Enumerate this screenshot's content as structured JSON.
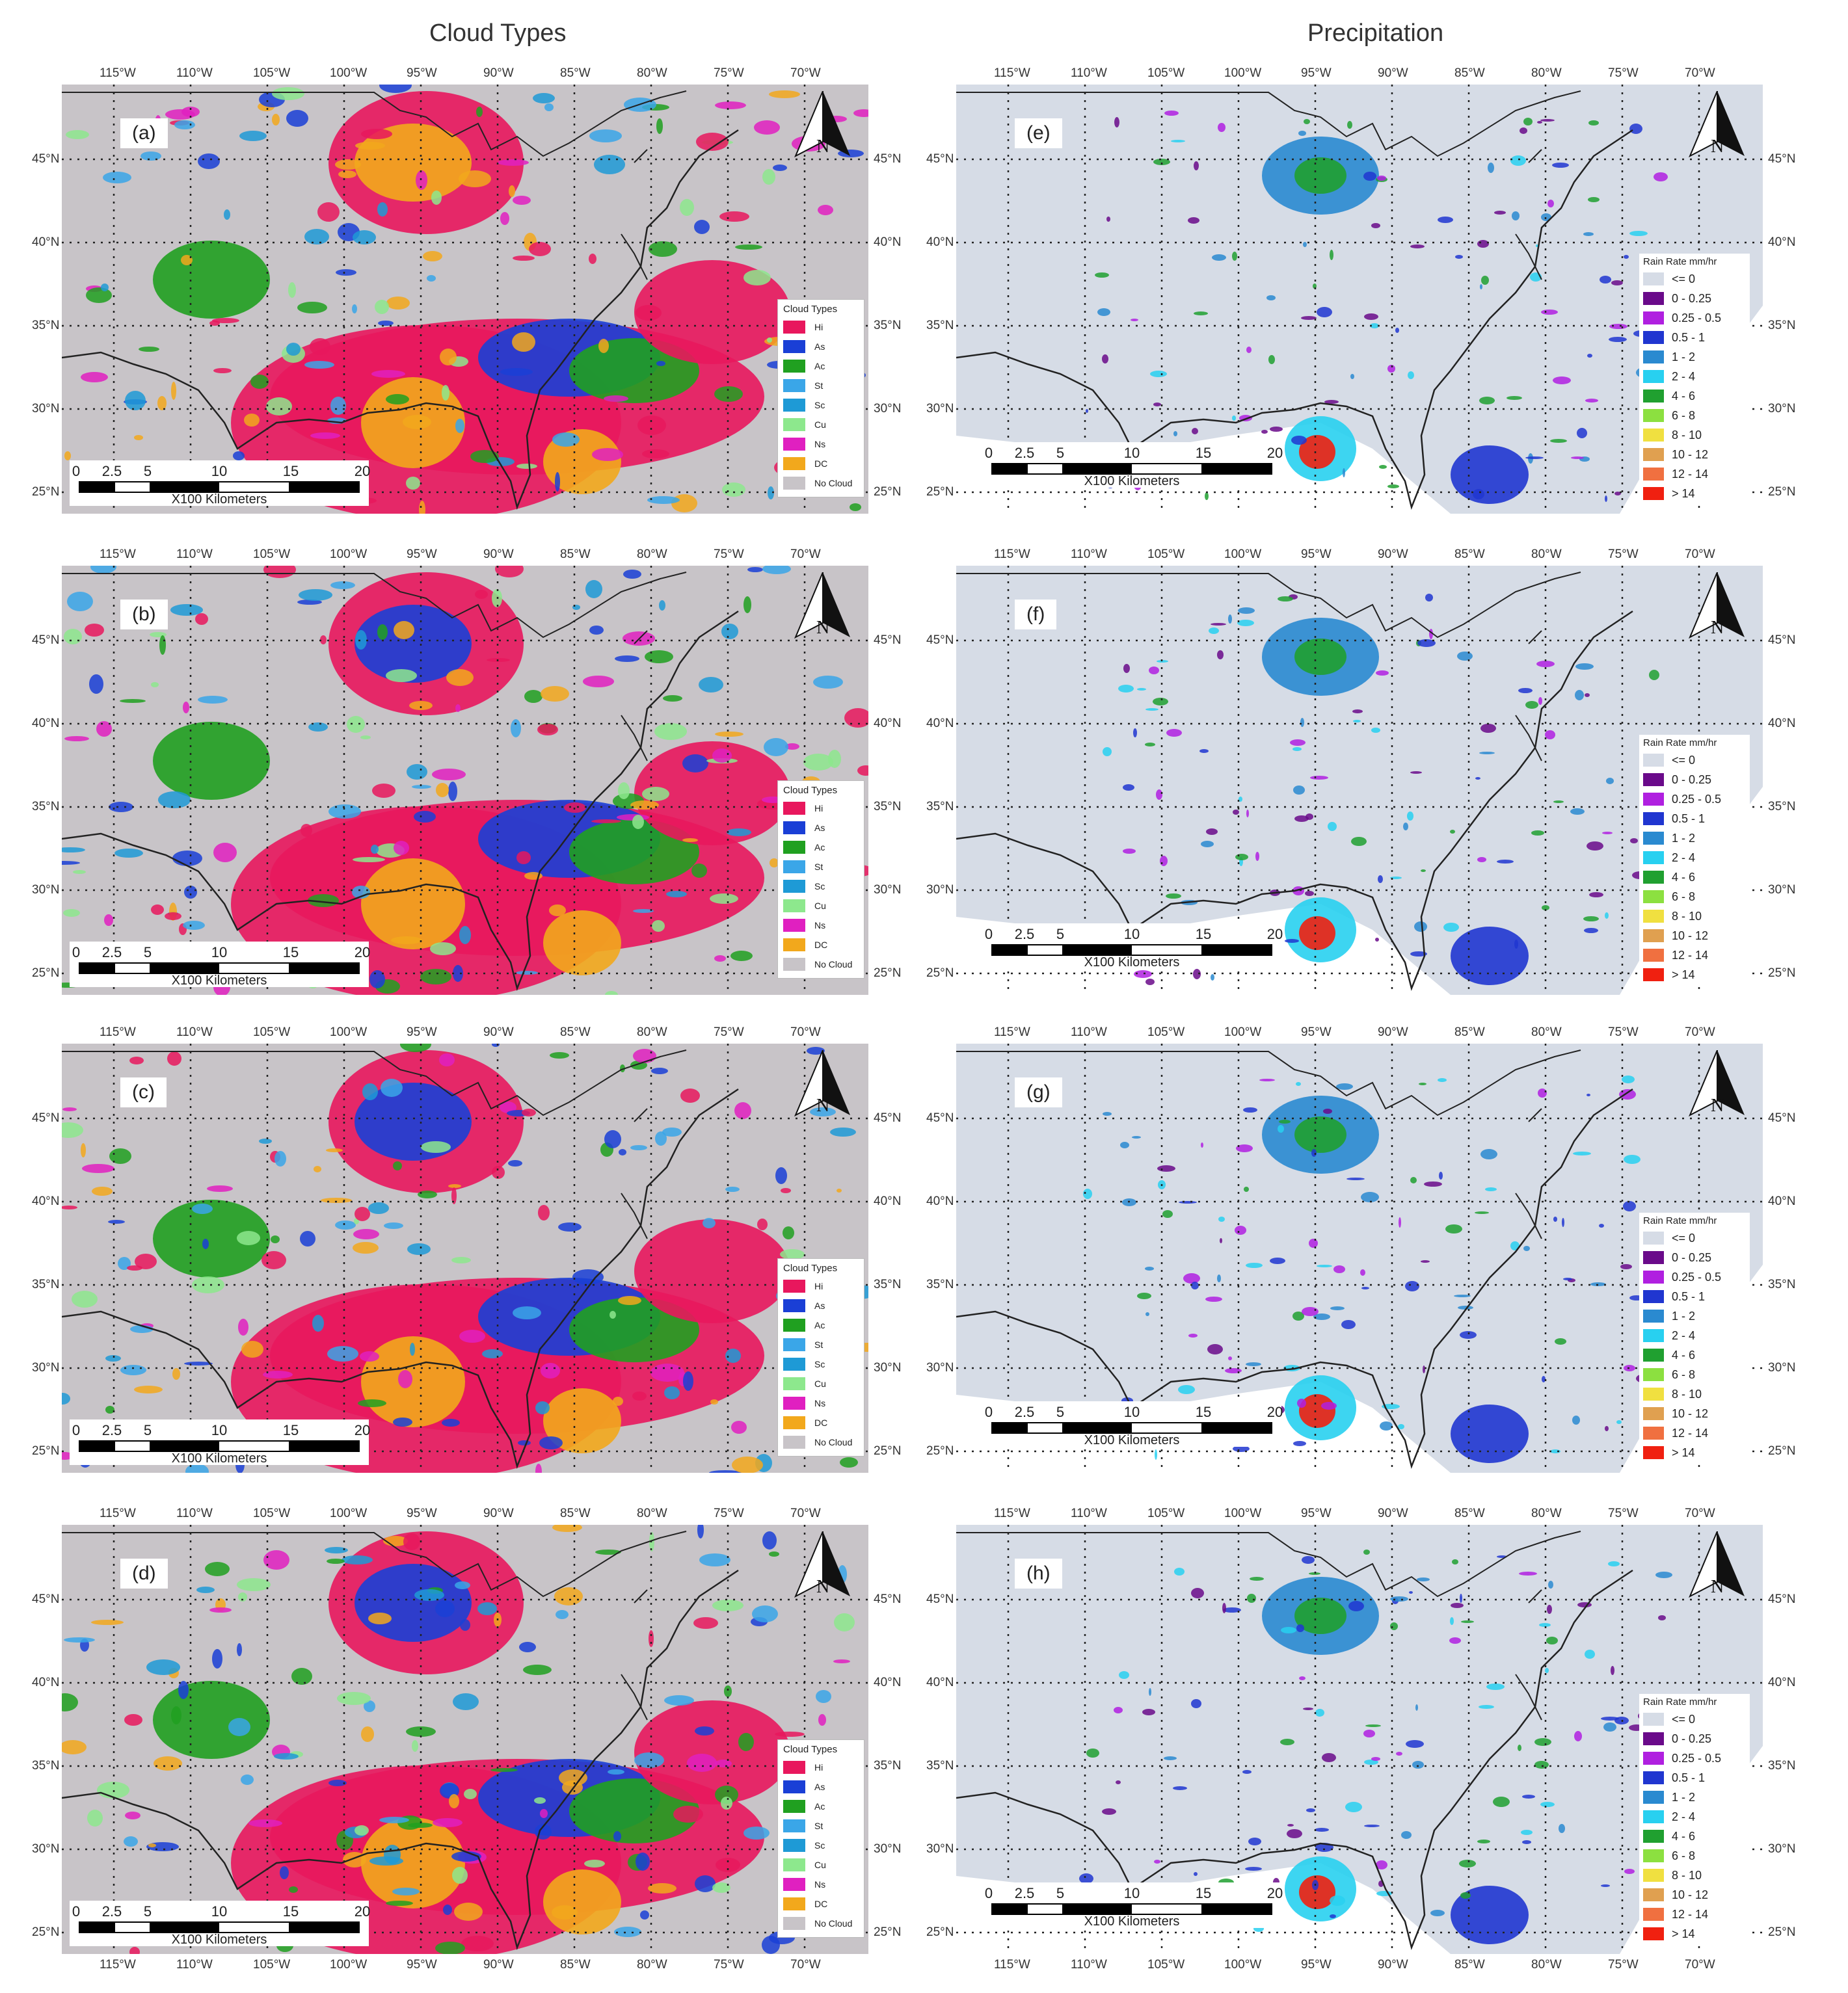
{
  "titles": {
    "left": "Cloud Types",
    "right": "Precipitation"
  },
  "lon_labels": [
    "115°W",
    "110°W",
    "105°W",
    "100°W",
    "95°W",
    "90°W",
    "85°W",
    "80°W",
    "75°W",
    "70°W"
  ],
  "lat_labels": [
    "45°N",
    "40°N",
    "35°N",
    "30°N",
    "25°N"
  ],
  "scale": {
    "numbers": [
      "0",
      "2.5",
      "5",
      "10",
      "15",
      "20"
    ],
    "unit": "X100 Kilometers"
  },
  "compass_letter": "N",
  "cloud_legend": {
    "title": "Cloud Types",
    "items": [
      {
        "label": "Hi",
        "color": "#e8175d"
      },
      {
        "label": "As",
        "color": "#1a3fd6"
      },
      {
        "label": "Ac",
        "color": "#20a020"
      },
      {
        "label": "St",
        "color": "#3aa6e8"
      },
      {
        "label": "Sc",
        "color": "#1e9ad6"
      },
      {
        "label": "Cu",
        "color": "#8de88d"
      },
      {
        "label": "Ns",
        "color": "#e020c0"
      },
      {
        "label": "DC",
        "color": "#f2a81c"
      },
      {
        "label": "No Cloud",
        "color": "#c8c4c8"
      }
    ]
  },
  "rain_legend": {
    "title": "Rain Rate mm/hr",
    "items": [
      {
        "label": "<= 0",
        "color": "#d6dce6"
      },
      {
        "label": "0 - 0.25",
        "color": "#6a0a8a"
      },
      {
        "label": "0.25 - 0.5",
        "color": "#b020e0"
      },
      {
        "label": "0.5 - 1",
        "color": "#2036d0"
      },
      {
        "label": "1 - 2",
        "color": "#2a8ad0"
      },
      {
        "label": "2 - 4",
        "color": "#28d0f0"
      },
      {
        "label": "4 - 6",
        "color": "#20a030"
      },
      {
        "label": "6 - 8",
        "color": "#8ce040"
      },
      {
        "label": "8 - 10",
        "color": "#f0e040"
      },
      {
        "label": "10 - 12",
        "color": "#e0a050"
      },
      {
        "label": "12 - 14",
        "color": "#f07040"
      },
      {
        "label": "> 14",
        "color": "#f02010"
      }
    ]
  },
  "panels": [
    {
      "id": "a",
      "label": "(a)",
      "kind": "cloud"
    },
    {
      "id": "b",
      "label": "(b)",
      "kind": "cloud"
    },
    {
      "id": "c",
      "label": "(c)",
      "kind": "cloud"
    },
    {
      "id": "d",
      "label": "(d)",
      "kind": "cloud"
    },
    {
      "id": "e",
      "label": "(e)",
      "kind": "rain"
    },
    {
      "id": "f",
      "label": "(f)",
      "kind": "rain"
    },
    {
      "id": "g",
      "label": "(g)",
      "kind": "rain"
    },
    {
      "id": "h",
      "label": "(h)",
      "kind": "rain"
    }
  ]
}
